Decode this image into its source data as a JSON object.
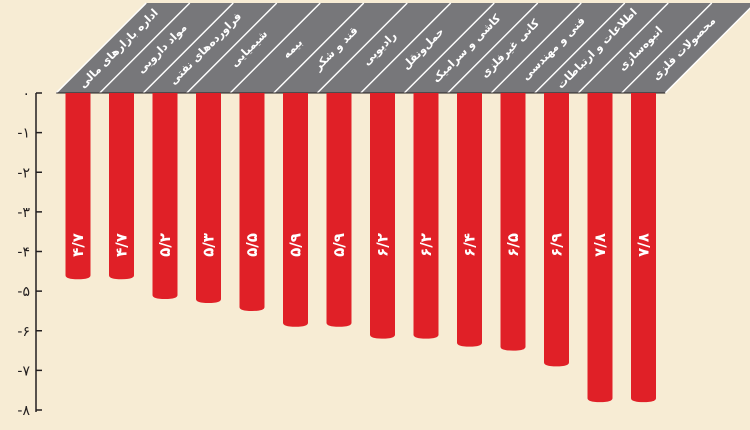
{
  "chart_data": {
    "type": "bar",
    "orientation": "vertical-negative",
    "categories": [
      "اداره بازارهای مالی",
      "مواد دارویی",
      "فراورده‌های نفتی",
      "شیمیایی",
      "بیمه",
      "قند و شکر",
      "رادیویی",
      "حمل‌ونقل",
      "کاشی و سرامیک",
      "کانی غیرفلزی",
      "فنی و مهندسی",
      "اطلاعات و ارتباطات",
      "انبوه‌سازی",
      "محصولات فلزی"
    ],
    "values": [
      -4.7,
      -4.7,
      -5.2,
      -5.3,
      -5.5,
      -5.9,
      -5.9,
      -6.2,
      -6.2,
      -6.4,
      -6.5,
      -6.9,
      -7.8,
      -7.8
    ],
    "value_labels": [
      "۴/۷",
      "۴/۷",
      "۵/۲",
      "۵/۳",
      "۵/۵",
      "۵/۹",
      "۵/۹",
      "۶/۲",
      "۶/۲",
      "۶/۴",
      "۶/۵",
      "۶/۹",
      "۷/۸",
      "۷/۸"
    ],
    "y_ticks": [
      0,
      -1,
      -2,
      -3,
      -4,
      -5,
      -6,
      -7,
      -8
    ],
    "y_tick_labels": [
      "۰",
      "-۱",
      "-۲",
      "-۳",
      "-۴",
      "-۵",
      "-۶",
      "-۷",
      "-۸"
    ],
    "ylim": [
      -8,
      0
    ],
    "title": "",
    "xlabel": "",
    "ylabel": "",
    "grid": false,
    "legend": "none",
    "colors": {
      "background": "#f7ecd4",
      "bar": "#e02027",
      "category_band": "#77777a",
      "category_edge": "#ffffff",
      "axis": "#231f20",
      "label_text": "#ffffff"
    }
  }
}
